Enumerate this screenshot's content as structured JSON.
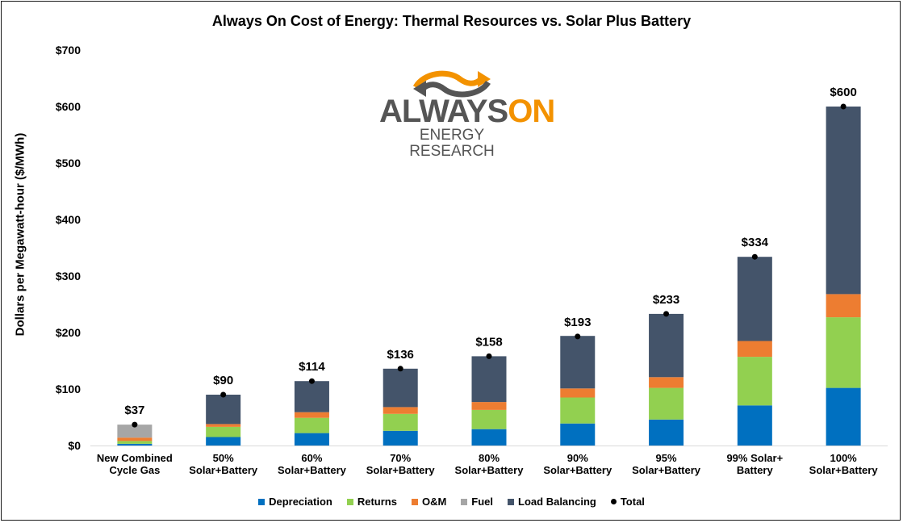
{
  "chart_data": {
    "type": "bar",
    "stacked": true,
    "title": "Always On Cost of Energy: Thermal Resources vs. Solar Plus Battery",
    "ylabel": "Dollars per Megawatt-hour ($/MWh)",
    "xlabel": "",
    "ylim": [
      0,
      700
    ],
    "yticks": [
      "$0",
      "$100",
      "$200",
      "$300",
      "$400",
      "$500",
      "$600",
      "$700"
    ],
    "ytick_values": [
      0,
      100,
      200,
      300,
      400,
      500,
      600,
      700
    ],
    "categories": [
      [
        "New Combined",
        "Cycle Gas"
      ],
      [
        "50%",
        "Solar+Battery"
      ],
      [
        "60%",
        "Solar+Battery"
      ],
      [
        "70%",
        "Solar+Battery"
      ],
      [
        "80%",
        "Solar+Battery"
      ],
      [
        "90%",
        "Solar+Battery"
      ],
      [
        "95%",
        "Solar+Battery"
      ],
      [
        "99% Solar+",
        "Battery"
      ],
      [
        "100%",
        "Solar+Battery"
      ]
    ],
    "series": [
      {
        "name": "Depreciation",
        "color": "#0070C0",
        "values": [
          3,
          15,
          22,
          26,
          29,
          39,
          46,
          71,
          102
        ]
      },
      {
        "name": "Returns",
        "color": "#92D050",
        "values": [
          5,
          18,
          27,
          30,
          34,
          46,
          56,
          86,
          125
        ]
      },
      {
        "name": "O&M",
        "color": "#ED7D31",
        "values": [
          6,
          5,
          10,
          12,
          14,
          16,
          19,
          28,
          41
        ]
      },
      {
        "name": "Fuel",
        "color": "#A6A6A6",
        "values": [
          23,
          0,
          0,
          0,
          0,
          0,
          0,
          0,
          0
        ]
      },
      {
        "name": "Load Balancing",
        "color": "#44546A",
        "values": [
          0,
          52,
          55,
          68,
          81,
          93,
          112,
          149,
          332
        ]
      }
    ],
    "totals": [
      37,
      90,
      114,
      136,
      158,
      193,
      233,
      334,
      600
    ],
    "total_labels": [
      "$37",
      "$90",
      "$114",
      "$136",
      "$158",
      "$193",
      "$233",
      "$334",
      "$600"
    ],
    "total_series_name": "Total",
    "legend_position": "bottom"
  },
  "logo": {
    "word1": "ALWAYS",
    "word2": "ON",
    "subtitle": "ENERGY RESEARCH",
    "gray": "#555555",
    "orange": "#F39200"
  }
}
